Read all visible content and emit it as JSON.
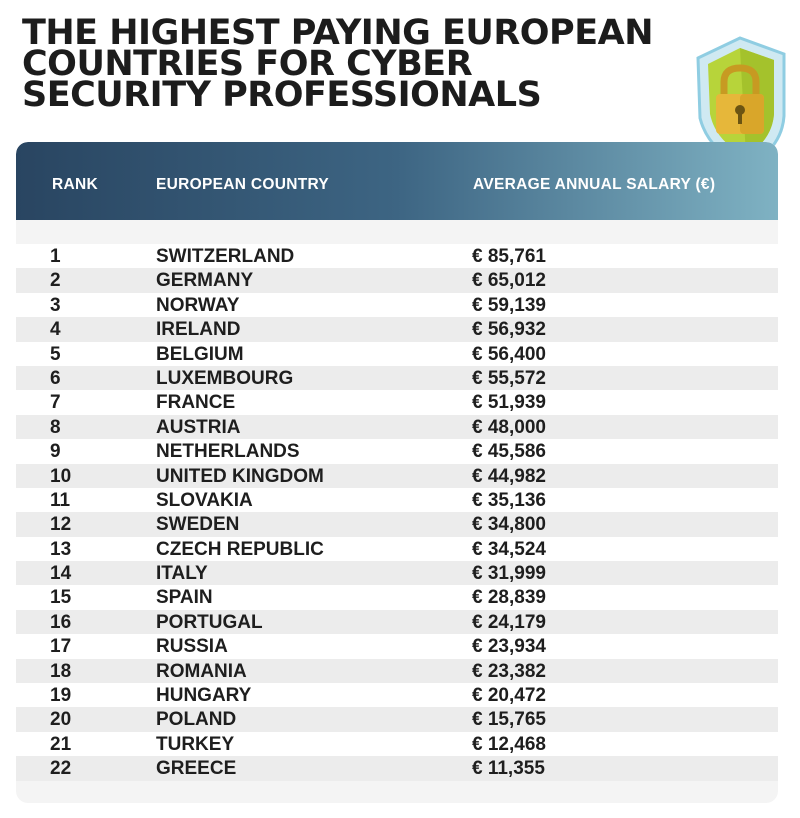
{
  "title_lines": [
    "THE HIGHEST PAYING EUROPEAN",
    "COUNTRIES FOR CYBER",
    "SECURITY PROFESSIONALS"
  ],
  "colors": {
    "header_start": "#294561",
    "header_end": "#7fb2c3",
    "shield_green": "#b7d43a",
    "lock_gold": "#e6b73a"
  },
  "chart_data": {
    "type": "table",
    "title": "THE HIGHEST PAYING EUROPEAN COUNTRIES FOR CYBER SECURITY PROFESSIONALS",
    "columns": [
      "RANK",
      "EUROPEAN COUNTRY",
      "AVERAGE ANNUAL SALARY (€)"
    ],
    "rows": [
      {
        "rank": "1",
        "country": "SWITZERLAND",
        "salary": "€ 85,761",
        "value": 85761
      },
      {
        "rank": "2",
        "country": "GERMANY",
        "salary": "€ 65,012",
        "value": 65012
      },
      {
        "rank": "3",
        "country": "NORWAY",
        "salary": "€ 59,139",
        "value": 59139
      },
      {
        "rank": "4",
        "country": "IRELAND",
        "salary": "€ 56,932",
        "value": 56932
      },
      {
        "rank": "5",
        "country": "BELGIUM",
        "salary": "€ 56,400",
        "value": 56400
      },
      {
        "rank": "6",
        "country": "LUXEMBOURG",
        "salary": "€ 55,572",
        "value": 55572
      },
      {
        "rank": "7",
        "country": "FRANCE",
        "salary": "€ 51,939",
        "value": 51939
      },
      {
        "rank": "8",
        "country": "AUSTRIA",
        "salary": "€ 48,000",
        "value": 48000
      },
      {
        "rank": "9",
        "country": "NETHERLANDS",
        "salary": "€ 45,586",
        "value": 45586
      },
      {
        "rank": "10",
        "country": "UNITED KINGDOM",
        "salary": "€ 44,982",
        "value": 44982
      },
      {
        "rank": "11",
        "country": "SLOVAKIA",
        "salary": "€ 35,136",
        "value": 35136
      },
      {
        "rank": "12",
        "country": "SWEDEN",
        "salary": "€ 34,800",
        "value": 34800
      },
      {
        "rank": "13",
        "country": "CZECH REPUBLIC",
        "salary": "€ 34,524",
        "value": 34524
      },
      {
        "rank": "14",
        "country": "ITALY",
        "salary": "€ 31,999",
        "value": 31999
      },
      {
        "rank": "15",
        "country": "SPAIN",
        "salary": "€ 28,839",
        "value": 28839
      },
      {
        "rank": "16",
        "country": "PORTUGAL",
        "salary": "€ 24,179",
        "value": 24179
      },
      {
        "rank": "17",
        "country": "RUSSIA",
        "salary": "€ 23,934",
        "value": 23934
      },
      {
        "rank": "18",
        "country": "ROMANIA",
        "salary": "€ 23,382",
        "value": 23382
      },
      {
        "rank": "19",
        "country": "HUNGARY",
        "salary": "€ 20,472",
        "value": 20472
      },
      {
        "rank": "20",
        "country": "POLAND",
        "salary": "€ 15,765",
        "value": 15765
      },
      {
        "rank": "21",
        "country": "TURKEY",
        "salary": "€ 12,468",
        "value": 12468
      },
      {
        "rank": "22",
        "country": "GREECE",
        "salary": "€ 11,355",
        "value": 11355
      }
    ]
  }
}
